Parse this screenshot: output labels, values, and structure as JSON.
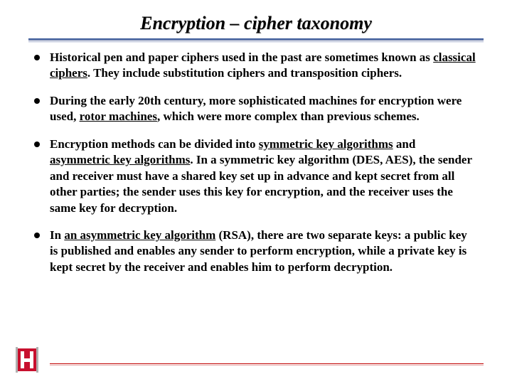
{
  "title": "Encryption – cipher taxonomy",
  "title_color": "#000000",
  "title_fontsize": 26,
  "hr_color": "#3b5998",
  "footer_line_color": "#c00000",
  "bullets": [
    {
      "segments": [
        {
          "t": "Historical pen and paper ciphers used in the past are sometimes known as "
        },
        {
          "t": "classical ciphers",
          "u": true
        },
        {
          "t": ". They include substitution ciphers and transposition ciphers."
        }
      ]
    },
    {
      "segments": [
        {
          "t": "During the early 20th century, more sophisticated machines for encryption were used, "
        },
        {
          "t": "rotor machines",
          "u": true
        },
        {
          "t": ", which were more complex than previous schemes."
        }
      ]
    },
    {
      "segments": [
        {
          "t": "Encryption methods can be divided into "
        },
        {
          "t": "symmetric key algorithms",
          "u": true
        },
        {
          "t": " and "
        },
        {
          "t": "asymmetric key algorithms",
          "u": true
        },
        {
          "t": ". In a symmetric key algorithm (DES, AES), the sender and receiver must have a shared key set up in advance and kept secret from all other parties; the sender uses this key for encryption, and the receiver uses the same key for decryption."
        }
      ]
    },
    {
      "segments": [
        {
          "t": "In "
        },
        {
          "t": "an asymmetric key algorithm",
          "u": true
        },
        {
          "t": " (RSA), there are two separate keys: a public key is published and enables any sender to perform encryption, while a private key is kept secret by the receiver and enables him to perform decryption."
        }
      ]
    }
  ],
  "logo": {
    "bg_color": "#c8102e",
    "fg_color": "#ffffff",
    "accent_color": "#b0b0b0"
  }
}
